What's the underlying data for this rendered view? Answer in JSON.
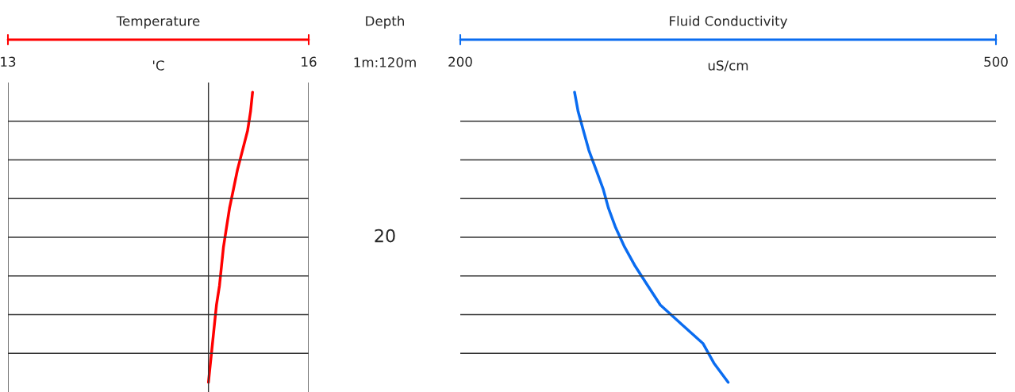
{
  "chart_data": [
    {
      "type": "line",
      "orientation": "horizontal",
      "title": "Temperature",
      "xlabel": "'C",
      "ylabel": "Depth",
      "annotations": [
        "1m:120m",
        "20"
      ],
      "xlim": [
        13,
        16
      ],
      "xticks": [
        13,
        {
          "value": 15,
          "label": null
        },
        16
      ],
      "tick_labels": "x",
      "grid": true,
      "categories": [
        null,
        null,
        null,
        null,
        null,
        null,
        null,
        null,
        null,
        null,
        null,
        null,
        null,
        null,
        null,
        null
      ],
      "series": [
        {
          "color": "#ff0000",
          "values": [
            15.44,
            15.42,
            15.39,
            15.34,
            15.29,
            15.25,
            15.21,
            15.18,
            15.15,
            15.13,
            15.11,
            15.08,
            15.06,
            15.04,
            15.02,
            15.0
          ]
        }
      ]
    },
    {
      "type": "line",
      "orientation": "horizontal",
      "title": "Fluid Conductivity",
      "xlabel": "uS/cm",
      "xlim": [
        200,
        500
      ],
      "xticks": [
        200,
        500
      ],
      "tick_labels": "x",
      "grid": "y",
      "categories": [
        null,
        null,
        null,
        null,
        null,
        null,
        null,
        null,
        null,
        null,
        null,
        null,
        null,
        null,
        null,
        null
      ],
      "series": [
        {
          "color": "#0a6cf0",
          "values": [
            264,
            266,
            269,
            272,
            276,
            280,
            283,
            287,
            292,
            298,
            305,
            312,
            324,
            336,
            342,
            350
          ]
        }
      ]
    }
  ]
}
